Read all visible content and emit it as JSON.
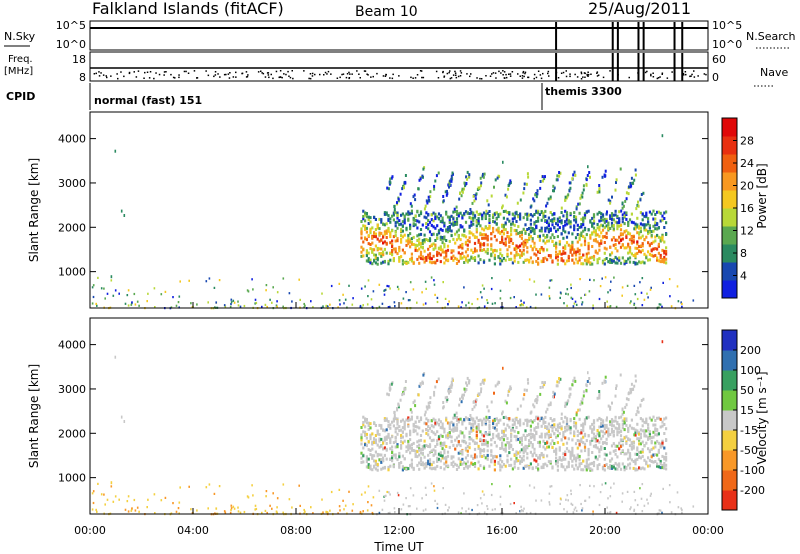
{
  "header": {
    "station": "Falkland Islands (fitACF)",
    "beam": "Beam 10",
    "date": "25/Aug/2011"
  },
  "summary": {
    "nsky_label": "N.Sky",
    "nsky_ticks": [
      "10^5",
      "10^0"
    ],
    "nsearch_label": "N.Search",
    "nsearch_ticks": [
      "10^5",
      "10^0"
    ],
    "freq_label": "Freq.",
    "freq_unit": "[MHz]",
    "freq_ticks": [
      "18",
      "8"
    ],
    "nave_label": "Nave",
    "nave_ticks": [
      "60",
      "0"
    ],
    "cpid_label": "CPID",
    "programs": [
      {
        "name": "normal (fast) 151",
        "start_hour": 0
      },
      {
        "name": "themis 3300",
        "start_hour": 18.1
      }
    ],
    "mode_switch_hours": [
      18.1,
      20.3,
      20.5,
      21.3,
      21.5,
      22.7,
      23.0
    ]
  },
  "chart_data": [
    {
      "type": "heatmap",
      "name": "power-panel",
      "ylabel": "Slant Range [km]",
      "xlabel": "Time UT",
      "xlim": [
        0,
        24
      ],
      "ylim": [
        180,
        4600
      ],
      "yticks": [
        "1000",
        "2000",
        "3000",
        "4000"
      ],
      "xticks": [
        "00:00",
        "04:00",
        "08:00",
        "12:00",
        "16:00",
        "20:00",
        "00:00"
      ],
      "colorbar": {
        "label": "Power [dB]",
        "ticks": [
          "4",
          "8",
          "12",
          "16",
          "20",
          "24",
          "28"
        ],
        "colors": [
          "#1020e0",
          "#1848b0",
          "#2a8a60",
          "#5aa850",
          "#b8d838",
          "#f4c820",
          "#f89820",
          "#f06010",
          "#e83010",
          "#e00808"
        ],
        "min": 0,
        "max": 32
      }
    },
    {
      "type": "heatmap",
      "name": "velocity-panel",
      "ylabel": "Slant Range [km]",
      "xlabel": "Time UT",
      "xlim": [
        0,
        24
      ],
      "ylim": [
        180,
        4600
      ],
      "yticks": [
        "1000",
        "2000",
        "3000",
        "4000"
      ],
      "xticks": [
        "00:00",
        "04:00",
        "08:00",
        "12:00",
        "16:00",
        "20:00",
        "00:00"
      ],
      "colorbar": {
        "label": "Velocity [m s⁻¹]",
        "ticks": [
          "200",
          "100",
          "50",
          "15",
          "-15",
          "-50",
          "-100",
          "-200"
        ],
        "colors": [
          "#2030c0",
          "#3070b0",
          "#38a060",
          "#70c840",
          "#c8c8c8",
          "#f4d040",
          "#f89828",
          "#f06818",
          "#e83018"
        ]
      }
    }
  ],
  "xaxis": {
    "label": "Time UT",
    "ticks": [
      "00:00",
      "04:00",
      "08:00",
      "12:00",
      "16:00",
      "20:00",
      "00:00"
    ]
  }
}
